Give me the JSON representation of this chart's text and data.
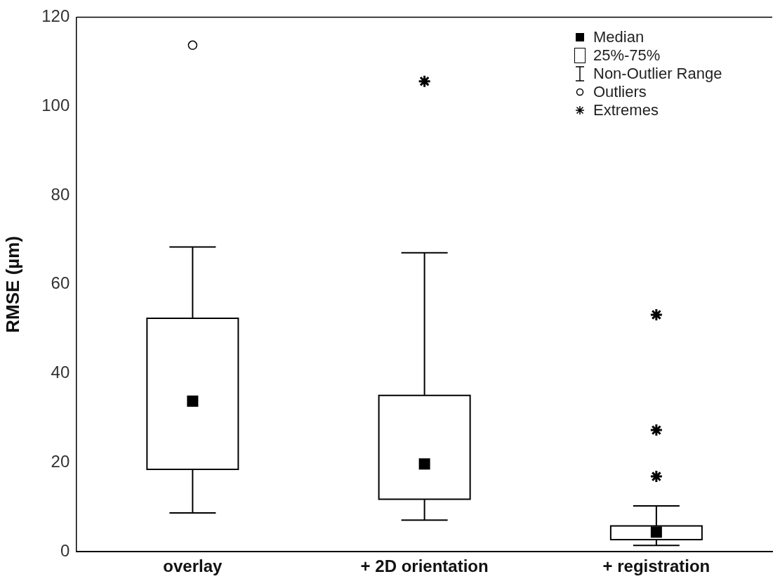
{
  "chart_data": {
    "type": "box",
    "ylabel": "RMSE (µm)",
    "categories": [
      "overlay",
      "+ 2D orientation",
      "+ registration"
    ],
    "ylim": [
      0,
      120
    ],
    "yticks": [
      0,
      20,
      40,
      60,
      80,
      100,
      120
    ],
    "grid": false,
    "legend": "top right",
    "annotations": [
      "Median",
      "25%-75%",
      "Non-Outlier Range"
    ],
    "series": [
      {
        "type": "box",
        "color": "#000000",
        "boxes": [
          {
            "low": 8.7,
            "q1": 18.5,
            "median": 33.8,
            "q3": 52.4,
            "high": 68.4
          },
          {
            "low": 7.1,
            "q1": 11.8,
            "median": 19.7,
            "q3": 35.1,
            "high": 67.1
          },
          {
            "low": 1.4,
            "q1": 2.7,
            "median": 4.4,
            "q3": 5.8,
            "high": 10.3
          }
        ]
      },
      {
        "type": "scatter",
        "name": "Outliers",
        "color": "#000000",
        "marker": "circle",
        "x": [
          "overlay"
        ],
        "values": [
          113.7
        ]
      },
      {
        "type": "scatter",
        "name": "Extremes",
        "color": "#000000",
        "marker": "cross",
        "x": [
          "+ 2D orientation",
          "+ registration",
          "+ registration",
          "+ registration"
        ],
        "values": [
          105.6,
          53.2,
          27.3,
          16.9
        ]
      }
    ]
  }
}
